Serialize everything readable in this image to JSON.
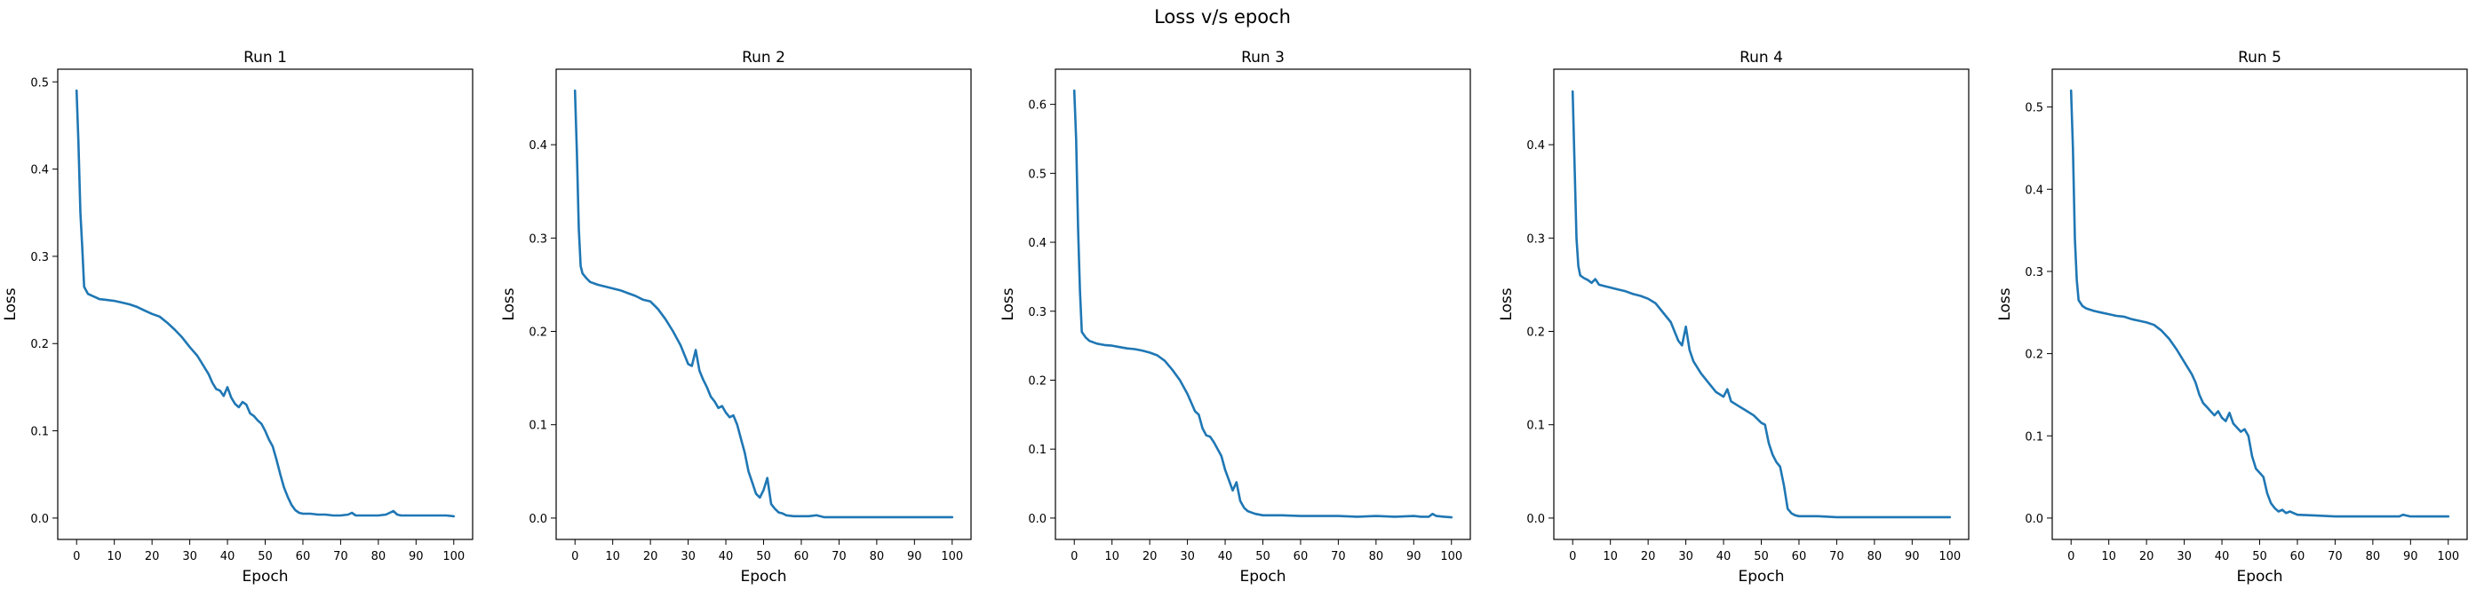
{
  "figure": {
    "suptitle": "Loss v/s epoch",
    "line_color": "#1f77b4"
  },
  "chart_data": [
    {
      "type": "line",
      "title": "Run 1",
      "xlabel": "Epoch",
      "ylabel": "Loss",
      "xlim": [
        -5,
        105
      ],
      "ylim": [
        -0.0245,
        0.5145
      ],
      "xticks": [
        0,
        10,
        20,
        30,
        40,
        50,
        60,
        70,
        80,
        90,
        100
      ],
      "yticks": [
        0.0,
        0.1,
        0.2,
        0.3,
        0.4,
        0.5
      ],
      "yticklabels": [
        "0.0",
        "0.1",
        "0.2",
        "0.3",
        "0.4",
        "0.5"
      ],
      "series": [
        {
          "x": [
            0,
            0.5,
            1,
            1.5,
            2,
            3,
            4,
            5,
            6,
            8,
            10,
            12,
            14,
            16,
            18,
            20,
            22,
            24,
            26,
            28,
            30,
            32,
            34,
            35,
            36,
            37,
            38,
            39,
            40,
            41,
            42,
            43,
            44,
            45,
            46,
            47,
            48,
            49,
            50,
            51,
            52,
            53,
            54,
            55,
            56,
            57,
            58,
            59,
            60,
            62,
            64,
            66,
            68,
            70,
            72,
            73,
            74,
            76,
            78,
            80,
            82,
            84,
            85,
            86,
            88,
            90,
            92,
            94,
            96,
            98,
            100
          ],
          "y": [
            0.49,
            0.43,
            0.35,
            0.31,
            0.265,
            0.257,
            0.255,
            0.253,
            0.251,
            0.25,
            0.249,
            0.247,
            0.245,
            0.242,
            0.238,
            0.234,
            0.231,
            0.224,
            0.216,
            0.207,
            0.196,
            0.186,
            0.172,
            0.165,
            0.155,
            0.148,
            0.146,
            0.14,
            0.15,
            0.138,
            0.131,
            0.127,
            0.133,
            0.13,
            0.12,
            0.117,
            0.112,
            0.108,
            0.1,
            0.09,
            0.082,
            0.067,
            0.05,
            0.035,
            0.024,
            0.015,
            0.009,
            0.006,
            0.005,
            0.005,
            0.004,
            0.004,
            0.003,
            0.003,
            0.004,
            0.006,
            0.003,
            0.003,
            0.003,
            0.003,
            0.004,
            0.008,
            0.004,
            0.003,
            0.003,
            0.003,
            0.003,
            0.003,
            0.003,
            0.003,
            0.002
          ]
        }
      ]
    },
    {
      "type": "line",
      "title": "Run 2",
      "xlabel": "Epoch",
      "ylabel": "Loss",
      "xlim": [
        -5,
        105
      ],
      "ylim": [
        -0.0229,
        0.4809
      ],
      "xticks": [
        0,
        10,
        20,
        30,
        40,
        50,
        60,
        70,
        80,
        90,
        100
      ],
      "yticks": [
        0.0,
        0.1,
        0.2,
        0.3,
        0.4
      ],
      "yticklabels": [
        "0.0",
        "0.1",
        "0.2",
        "0.3",
        "0.4"
      ],
      "series": [
        {
          "x": [
            0,
            0.5,
            1,
            1.5,
            2,
            3,
            4,
            6,
            8,
            10,
            12,
            14,
            16,
            18,
            20,
            22,
            24,
            26,
            28,
            30,
            31,
            32,
            33,
            34,
            35,
            36,
            37,
            38,
            39,
            40,
            41,
            42,
            43,
            44,
            45,
            46,
            47,
            48,
            49,
            50,
            51,
            52,
            53,
            54,
            55,
            56,
            58,
            60,
            62,
            64,
            66,
            68,
            70,
            75,
            80,
            85,
            90,
            95,
            100
          ],
          "y": [
            0.458,
            0.39,
            0.31,
            0.27,
            0.262,
            0.257,
            0.253,
            0.25,
            0.248,
            0.246,
            0.244,
            0.241,
            0.238,
            0.234,
            0.232,
            0.224,
            0.213,
            0.2,
            0.185,
            0.165,
            0.163,
            0.18,
            0.158,
            0.148,
            0.14,
            0.13,
            0.125,
            0.118,
            0.12,
            0.113,
            0.108,
            0.11,
            0.1,
            0.085,
            0.07,
            0.05,
            0.038,
            0.026,
            0.022,
            0.03,
            0.043,
            0.015,
            0.01,
            0.006,
            0.005,
            0.003,
            0.002,
            0.002,
            0.002,
            0.003,
            0.001,
            0.001,
            0.001,
            0.001,
            0.001,
            0.001,
            0.001,
            0.001,
            0.001
          ]
        }
      ]
    },
    {
      "type": "line",
      "title": "Run 3",
      "xlabel": "Epoch",
      "ylabel": "Loss",
      "xlim": [
        -5,
        105
      ],
      "ylim": [
        -0.031,
        0.651
      ],
      "xticks": [
        0,
        10,
        20,
        30,
        40,
        50,
        60,
        70,
        80,
        90,
        100
      ],
      "yticks": [
        0.0,
        0.1,
        0.2,
        0.3,
        0.4,
        0.5,
        0.6
      ],
      "yticklabels": [
        "0.0",
        "0.1",
        "0.2",
        "0.3",
        "0.4",
        "0.5",
        "0.6"
      ],
      "series": [
        {
          "x": [
            0,
            0.5,
            1,
            1.5,
            2,
            3,
            4,
            6,
            8,
            10,
            12,
            14,
            16,
            18,
            20,
            22,
            24,
            26,
            28,
            30,
            32,
            33,
            34,
            35,
            36,
            37,
            38,
            39,
            40,
            41,
            42,
            43,
            44,
            45,
            46,
            47,
            48,
            50,
            55,
            60,
            65,
            70,
            75,
            80,
            85,
            90,
            92,
            94,
            95,
            96,
            98,
            100
          ],
          "y": [
            0.62,
            0.55,
            0.42,
            0.33,
            0.27,
            0.262,
            0.257,
            0.253,
            0.251,
            0.25,
            0.248,
            0.246,
            0.245,
            0.243,
            0.24,
            0.236,
            0.228,
            0.215,
            0.2,
            0.18,
            0.155,
            0.15,
            0.13,
            0.12,
            0.118,
            0.11,
            0.1,
            0.09,
            0.07,
            0.055,
            0.04,
            0.052,
            0.025,
            0.015,
            0.01,
            0.008,
            0.006,
            0.004,
            0.004,
            0.003,
            0.003,
            0.003,
            0.002,
            0.003,
            0.002,
            0.003,
            0.002,
            0.002,
            0.006,
            0.003,
            0.002,
            0.001
          ]
        }
      ]
    },
    {
      "type": "line",
      "title": "Run 4",
      "xlabel": "Epoch",
      "ylabel": "Loss",
      "xlim": [
        -5,
        105
      ],
      "ylim": [
        -0.0229,
        0.4809
      ],
      "xticks": [
        0,
        10,
        20,
        30,
        40,
        50,
        60,
        70,
        80,
        90,
        100
      ],
      "yticks": [
        0.0,
        0.1,
        0.2,
        0.3,
        0.4
      ],
      "yticklabels": [
        "0.0",
        "0.1",
        "0.2",
        "0.3",
        "0.4"
      ],
      "series": [
        {
          "x": [
            0,
            0.5,
            1,
            1.5,
            2,
            3,
            4,
            5,
            6,
            7,
            8,
            10,
            12,
            14,
            16,
            18,
            20,
            22,
            24,
            26,
            28,
            29,
            30,
            31,
            32,
            34,
            36,
            38,
            40,
            41,
            42,
            44,
            46,
            48,
            50,
            51,
            52,
            53,
            54,
            55,
            56,
            57,
            58,
            59,
            60,
            62,
            65,
            70,
            75,
            80,
            85,
            90,
            95,
            100
          ],
          "y": [
            0.457,
            0.38,
            0.3,
            0.27,
            0.26,
            0.257,
            0.255,
            0.252,
            0.256,
            0.25,
            0.249,
            0.247,
            0.245,
            0.243,
            0.24,
            0.238,
            0.235,
            0.23,
            0.22,
            0.21,
            0.19,
            0.185,
            0.205,
            0.18,
            0.168,
            0.155,
            0.145,
            0.135,
            0.13,
            0.138,
            0.125,
            0.12,
            0.115,
            0.11,
            0.102,
            0.1,
            0.08,
            0.068,
            0.06,
            0.055,
            0.035,
            0.01,
            0.005,
            0.003,
            0.002,
            0.002,
            0.002,
            0.001,
            0.001,
            0.001,
            0.001,
            0.001,
            0.001,
            0.001
          ]
        }
      ]
    },
    {
      "type": "line",
      "title": "Run 5",
      "xlabel": "Epoch",
      "ylabel": "Loss",
      "xlim": [
        -5,
        105
      ],
      "ylim": [
        -0.026,
        0.546
      ],
      "xticks": [
        0,
        10,
        20,
        30,
        40,
        50,
        60,
        70,
        80,
        90,
        100
      ],
      "yticks": [
        0.0,
        0.1,
        0.2,
        0.3,
        0.4,
        0.5
      ],
      "yticklabels": [
        "0.0",
        "0.1",
        "0.2",
        "0.3",
        "0.4",
        "0.5"
      ],
      "series": [
        {
          "x": [
            0,
            0.5,
            1,
            1.5,
            2,
            3,
            4,
            6,
            8,
            10,
            12,
            14,
            16,
            18,
            20,
            22,
            24,
            26,
            28,
            30,
            32,
            33,
            34,
            35,
            36,
            37,
            38,
            39,
            40,
            41,
            42,
            43,
            44,
            45,
            46,
            47,
            48,
            49,
            50,
            51,
            52,
            53,
            54,
            55,
            56,
            57,
            58,
            60,
            65,
            70,
            75,
            80,
            85,
            87,
            88,
            90,
            95,
            100
          ],
          "y": [
            0.52,
            0.45,
            0.34,
            0.29,
            0.265,
            0.258,
            0.255,
            0.252,
            0.25,
            0.248,
            0.246,
            0.245,
            0.242,
            0.24,
            0.238,
            0.235,
            0.228,
            0.218,
            0.205,
            0.19,
            0.175,
            0.165,
            0.15,
            0.14,
            0.135,
            0.13,
            0.125,
            0.13,
            0.122,
            0.118,
            0.128,
            0.115,
            0.11,
            0.105,
            0.108,
            0.1,
            0.075,
            0.06,
            0.055,
            0.05,
            0.03,
            0.018,
            0.012,
            0.008,
            0.01,
            0.006,
            0.008,
            0.004,
            0.003,
            0.002,
            0.002,
            0.002,
            0.002,
            0.002,
            0.004,
            0.002,
            0.002,
            0.002
          ]
        }
      ]
    }
  ]
}
